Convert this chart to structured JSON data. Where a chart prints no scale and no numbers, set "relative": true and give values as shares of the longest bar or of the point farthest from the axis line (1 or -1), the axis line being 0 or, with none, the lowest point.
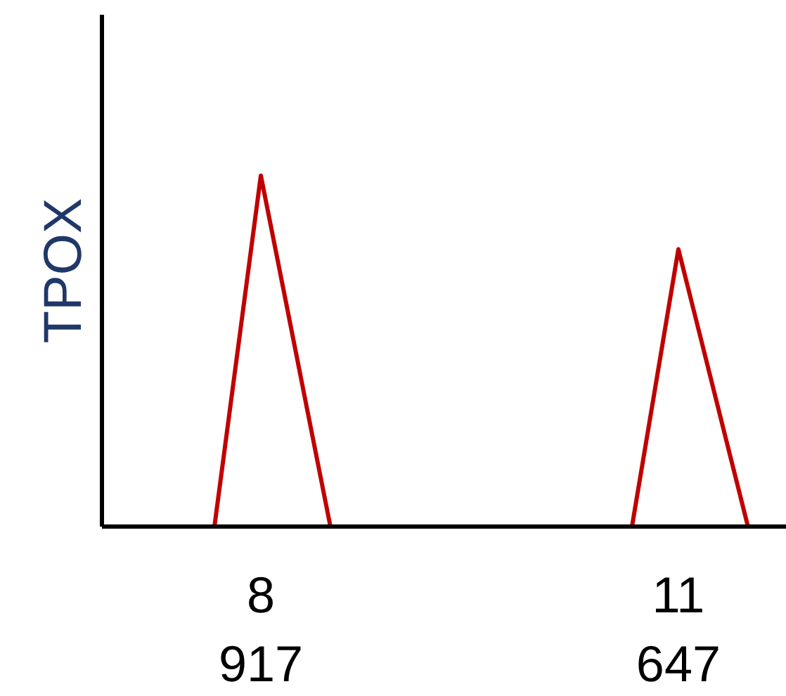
{
  "chart_data": {
    "type": "line",
    "relative": true,
    "ylabel": "TPOX",
    "categories": [
      null,
      null,
      "8\n917",
      null,
      null,
      null,
      null,
      null,
      null,
      null,
      null,
      null,
      null,
      null,
      null,
      null,
      null,
      null,
      null,
      null,
      "11\n647",
      null,
      null,
      null
    ],
    "series": [
      {
        "color": "#c00000",
        "values": [
          0,
          0.5,
          1,
          0.667,
          0.333,
          0,
          null,
          null,
          null,
          null,
          null,
          null,
          null,
          null,
          null,
          null,
          null,
          null,
          0,
          0.395,
          0.79,
          0.527,
          0.263,
          0
        ]
      }
    ],
    "marker": "none",
    "line_style": "solid",
    "grid": false
  }
}
